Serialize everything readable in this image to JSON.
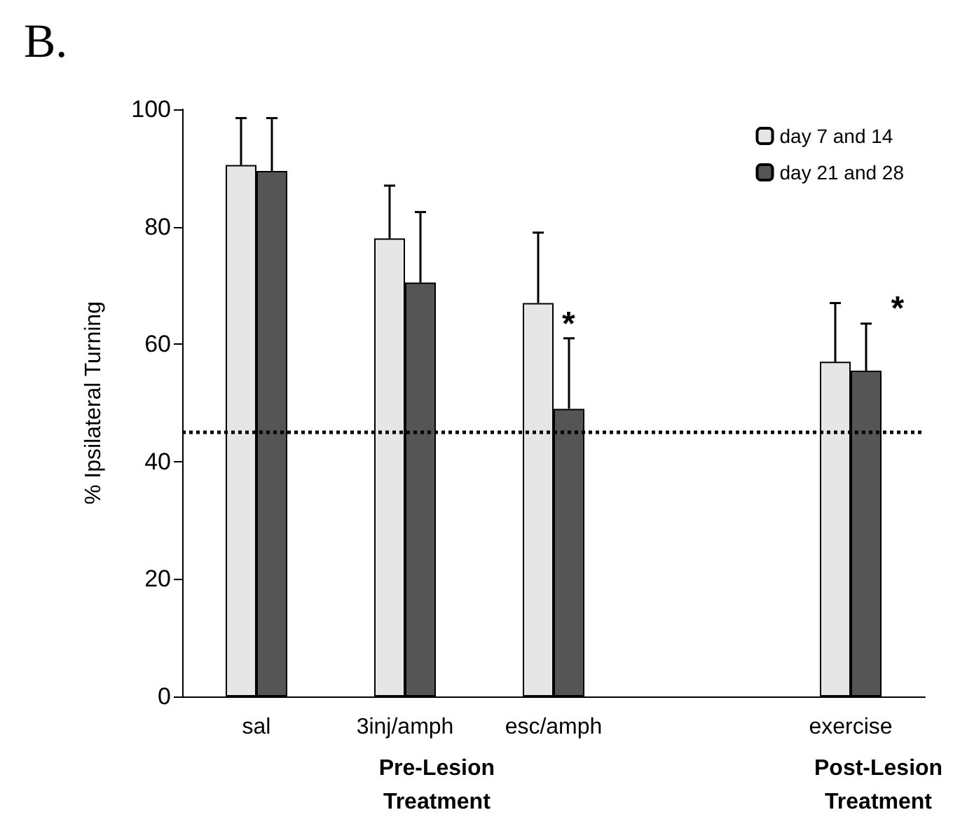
{
  "chart_data": {
    "type": "bar",
    "title": "B.",
    "ylabel": "% Ipsilateral Turning",
    "categories": [
      "sal",
      "3inj/amph",
      "esc/amph",
      null,
      "exercise"
    ],
    "series": [
      {
        "name": "day 7 and 14",
        "color": "#e6e6e6",
        "values": [
          90.5,
          78,
          67,
          null,
          57
        ],
        "errors": [
          8,
          9,
          12,
          null,
          10
        ]
      },
      {
        "name": "day 21 and 28",
        "color": "#555555",
        "values": [
          89.5,
          70.5,
          49,
          null,
          55.5
        ],
        "errors": [
          9,
          12,
          12,
          null,
          8
        ]
      }
    ],
    "ylim": [
      0,
      100
    ],
    "yticks": [
      0,
      20,
      40,
      60,
      80,
      100
    ],
    "grid": false,
    "legend": "top right",
    "ref_lines": [
      {
        "axis": "y",
        "value": 45,
        "line_style": "dotted",
        "color": "#000000"
      }
    ],
    "annotations": [
      {
        "text": "*",
        "x": "esc/amph",
        "y": 61
      },
      "*",
      "Pre-Lesion\nTreatment",
      "Post-Lesion\nTreatment"
    ]
  }
}
